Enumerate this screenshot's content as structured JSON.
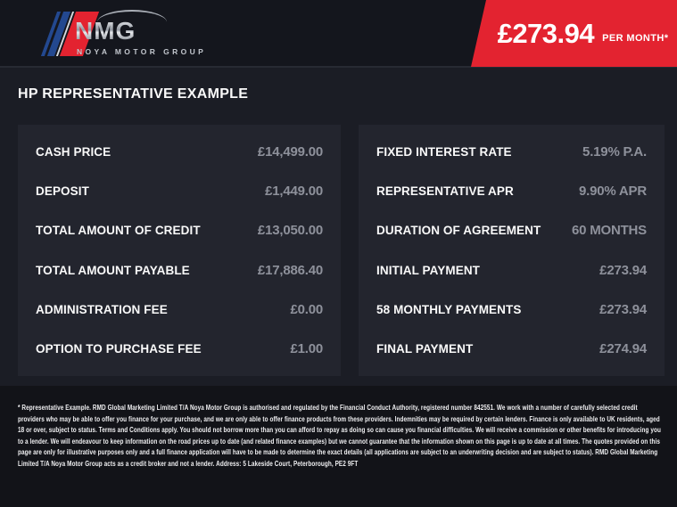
{
  "header": {
    "logo": {
      "brand": "NMG",
      "subtitle": "NOYA MOTOR GROUP"
    },
    "price_banner": {
      "amount": "£273.94",
      "period": "PER MONTH*"
    }
  },
  "page_title": "HP REPRESENTATIVE EXAMPLE",
  "finance_example": {
    "left_column": [
      {
        "label": "CASH PRICE",
        "value": "£14,499.00"
      },
      {
        "label": "DEPOSIT",
        "value": "£1,449.00"
      },
      {
        "label": "TOTAL AMOUNT OF CREDIT",
        "value": "£13,050.00"
      },
      {
        "label": "TOTAL AMOUNT PAYABLE",
        "value": "£17,886.40"
      },
      {
        "label": "ADMINISTRATION FEE",
        "value": "£0.00"
      },
      {
        "label": "OPTION TO PURCHASE FEE",
        "value": "£1.00"
      }
    ],
    "right_column": [
      {
        "label": "FIXED INTEREST RATE",
        "value": "5.19% P.A."
      },
      {
        "label": "REPRESENTATIVE APR",
        "value": "9.90% APR"
      },
      {
        "label": "DURATION OF AGREEMENT",
        "value": "60 MONTHS"
      },
      {
        "label": "INITIAL PAYMENT",
        "value": "£273.94"
      },
      {
        "label": "58 MONTHLY PAYMENTS",
        "value": "£273.94"
      },
      {
        "label": "FINAL PAYMENT",
        "value": "£274.94"
      }
    ]
  },
  "disclaimer": "* Representative Example. RMD Global Marketing Limited T/A Noya Motor Group is authorised and regulated by the Financial Conduct Authority, registered number 842551. We work with a number of carefully selected credit providers who may be able to offer you finance for your purchase, and we are only able to offer finance products from these providers. Indemnities may be required by certain lenders. Finance is only available to UK residents, aged 18 or over, subject to status. Terms and Conditions apply. You should not borrow more than you can afford to repay as doing so can cause you financial difficulties. We will receive a commission or other benefits for introducing you to a lender. We will endeavour to keep information on the road prices up to date (and related finance examples) but we cannot guarantee that the information shown on this page is up to date at all times. The quotes provided on this page are only for illustrative purposes only and a full finance application will have to be made to determine the exact details (all applications are subject to an underwriting decision and are subject to status). RMD Global Marketing Limited T/A Noya Motor Group acts as a credit broker and not a lender. Address: 5 Lakeside Court, Peterborough, PE2 9FT",
  "colors": {
    "accent_red": "#e32330",
    "header_bg": "#14161d",
    "main_bg": "#1b1d25",
    "panel_bg": "#23252e",
    "footer_bg": "#121318",
    "value_grey": "#8e919b",
    "logo_blue": "#23488f"
  }
}
